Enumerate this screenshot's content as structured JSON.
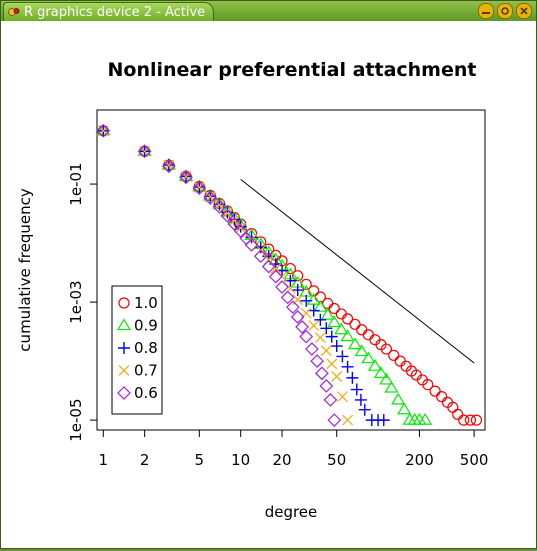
{
  "window": {
    "title": "R graphics device 2 - Active",
    "icons": [
      "r-app-icon",
      "minimize-icon",
      "maximize-icon",
      "close-icon"
    ]
  },
  "chart_data": {
    "type": "scatter",
    "title": "Nonlinear preferential attachment",
    "xlabel": "degree",
    "ylabel": "cumulative frequency",
    "x_scale": "log",
    "y_scale": "log",
    "xlim": [
      0.9,
      600
    ],
    "ylim": [
      6.8e-06,
      1.8
    ],
    "x_ticks": [
      {
        "value": 1,
        "label": "1"
      },
      {
        "value": 2,
        "label": "2"
      },
      {
        "value": 5,
        "label": "5"
      },
      {
        "value": 10,
        "label": "10"
      },
      {
        "value": 20,
        "label": "20"
      },
      {
        "value": 50,
        "label": "50"
      },
      {
        "value": 200,
        "label": "200"
      },
      {
        "value": 500,
        "label": "500"
      }
    ],
    "y_ticks": [
      {
        "value": 0.1,
        "label": "1e-01"
      },
      {
        "value": 0.001,
        "label": "1e-03"
      },
      {
        "value": 1e-05,
        "label": "1e-05"
      }
    ],
    "legend_position": "bottom-left",
    "reference_line": {
      "x": [
        10,
        500
      ],
      "y": [
        0.12,
        9.3e-05
      ]
    },
    "series": [
      {
        "name": "1.0",
        "marker": "circle",
        "color": "#ff0000",
        "x": [
          1,
          2,
          3,
          4,
          5,
          6,
          7,
          8,
          9,
          10,
          12,
          14,
          16,
          18,
          20,
          23,
          26,
          30,
          34,
          38,
          43,
          48,
          54,
          60,
          68,
          76,
          85,
          95,
          105,
          115,
          130,
          145,
          160,
          175,
          190,
          210,
          230,
          260,
          290,
          320,
          350,
          380,
          420,
          470,
          520
        ],
        "y": [
          0.8,
          0.36,
          0.21,
          0.135,
          0.091,
          0.064,
          0.047,
          0.035,
          0.027,
          0.021,
          0.0145,
          0.0105,
          0.0079,
          0.0062,
          0.005,
          0.0037,
          0.0028,
          0.002,
          0.00155,
          0.00122,
          0.00095,
          0.00078,
          0.00063,
          0.00052,
          0.00042,
          0.00034,
          0.00028,
          0.00023,
          0.00019,
          0.00016,
          0.000125,
          0.0001,
          8.2e-05,
          6.8e-05,
          5.8e-05,
          4.8e-05,
          4e-05,
          3.1e-05,
          2.5e-05,
          2e-05,
          1.65e-05,
          1.25e-05,
          1e-05,
          1e-05,
          1e-05
        ]
      },
      {
        "name": "0.9",
        "marker": "triangle",
        "color": "#00ee00",
        "x": [
          1,
          2,
          3,
          4,
          5,
          6,
          7,
          8,
          9,
          10,
          12,
          14,
          16,
          18,
          20,
          23,
          26,
          30,
          34,
          38,
          43,
          48,
          54,
          60,
          68,
          76,
          85,
          95,
          105,
          115,
          125,
          140,
          155,
          170,
          185,
          200,
          220
        ],
        "y": [
          0.8,
          0.36,
          0.21,
          0.135,
          0.09,
          0.063,
          0.046,
          0.034,
          0.026,
          0.02,
          0.0135,
          0.0095,
          0.0069,
          0.0052,
          0.0041,
          0.0029,
          0.0021,
          0.00148,
          0.00108,
          0.00082,
          0.0006,
          0.00045,
          0.00034,
          0.00026,
          0.00019,
          0.000145,
          0.00011,
          8.2e-05,
          6.2e-05,
          4.8e-05,
          3.5e-05,
          2.2e-05,
          1.5e-05,
          1e-05,
          1e-05,
          1e-05,
          1e-05
        ]
      },
      {
        "name": "0.8",
        "marker": "plus",
        "color": "#0000ff",
        "x": [
          1,
          2,
          3,
          4,
          5,
          6,
          7,
          8,
          9,
          10,
          12,
          14,
          16,
          18,
          20,
          23,
          26,
          30,
          34,
          38,
          42,
          46,
          50,
          55,
          60,
          65,
          70,
          75,
          80,
          90,
          100,
          110
        ],
        "y": [
          0.8,
          0.36,
          0.21,
          0.135,
          0.089,
          0.062,
          0.045,
          0.033,
          0.025,
          0.019,
          0.0125,
          0.0085,
          0.006,
          0.0044,
          0.0034,
          0.0023,
          0.0016,
          0.00105,
          0.00072,
          0.0005,
          0.00036,
          0.00026,
          0.00018,
          0.00012,
          8e-05,
          5.2e-05,
          3.3e-05,
          2.2e-05,
          1.5e-05,
          1e-05,
          1e-05,
          1e-05
        ]
      },
      {
        "name": "0.7",
        "marker": "x",
        "color": "#ffa500",
        "x": [
          1,
          2,
          3,
          4,
          5,
          6,
          7,
          8,
          9,
          10,
          12,
          14,
          16,
          18,
          20,
          23,
          26,
          30,
          34,
          38,
          42,
          46,
          50,
          55,
          60
        ],
        "y": [
          0.8,
          0.36,
          0.21,
          0.134,
          0.088,
          0.061,
          0.044,
          0.032,
          0.024,
          0.018,
          0.0115,
          0.0076,
          0.0052,
          0.0037,
          0.0027,
          0.0017,
          0.0011,
          0.00065,
          0.0004,
          0.00025,
          0.00015,
          9e-05,
          5.5e-05,
          2.5e-05,
          1e-05
        ]
      },
      {
        "name": "0.6",
        "marker": "diamond",
        "color": "#a020f0",
        "x": [
          1,
          2,
          3,
          4,
          5,
          6,
          7,
          8,
          9,
          10,
          11,
          12,
          14,
          16,
          18,
          20,
          22,
          24,
          26,
          28,
          30,
          33,
          36,
          39,
          42,
          45,
          48
        ],
        "y": [
          0.8,
          0.36,
          0.2,
          0.13,
          0.085,
          0.058,
          0.041,
          0.029,
          0.021,
          0.016,
          0.012,
          0.0093,
          0.006,
          0.004,
          0.0027,
          0.0018,
          0.0012,
          0.00082,
          0.00056,
          0.00038,
          0.00026,
          0.00016,
          0.0001,
          6.2e-05,
          3.8e-05,
          2.2e-05,
          1e-05
        ]
      }
    ]
  }
}
